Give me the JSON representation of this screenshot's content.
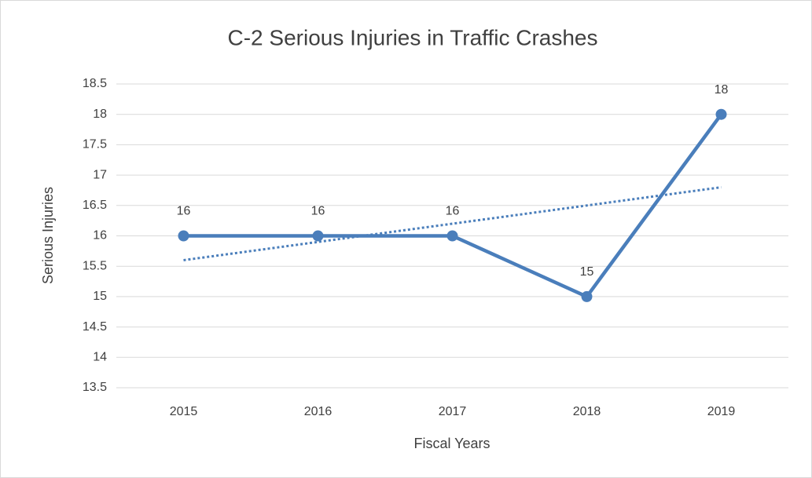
{
  "chart_data": {
    "type": "line",
    "title": "C-2 Serious Injuries in Traffic Crashes",
    "x_label": "Fiscal Years",
    "y_label": "Serious Injuries",
    "categories": [
      "2015",
      "2016",
      "2017",
      "2018",
      "2019"
    ],
    "values": [
      16,
      16,
      16,
      15,
      18
    ],
    "color": "#4a7ebb",
    "trendline": {
      "values": [
        15.6,
        15.9,
        16.2,
        16.5,
        16.8
      ],
      "color": "#4a7ebb",
      "style": "dotted"
    },
    "ylim": [
      13.5,
      18.5
    ],
    "yticks": [
      13.5,
      14,
      14.5,
      15,
      15.5,
      16,
      16.5,
      17,
      17.5,
      18,
      18.5
    ],
    "grid": true,
    "data_labels": true
  }
}
